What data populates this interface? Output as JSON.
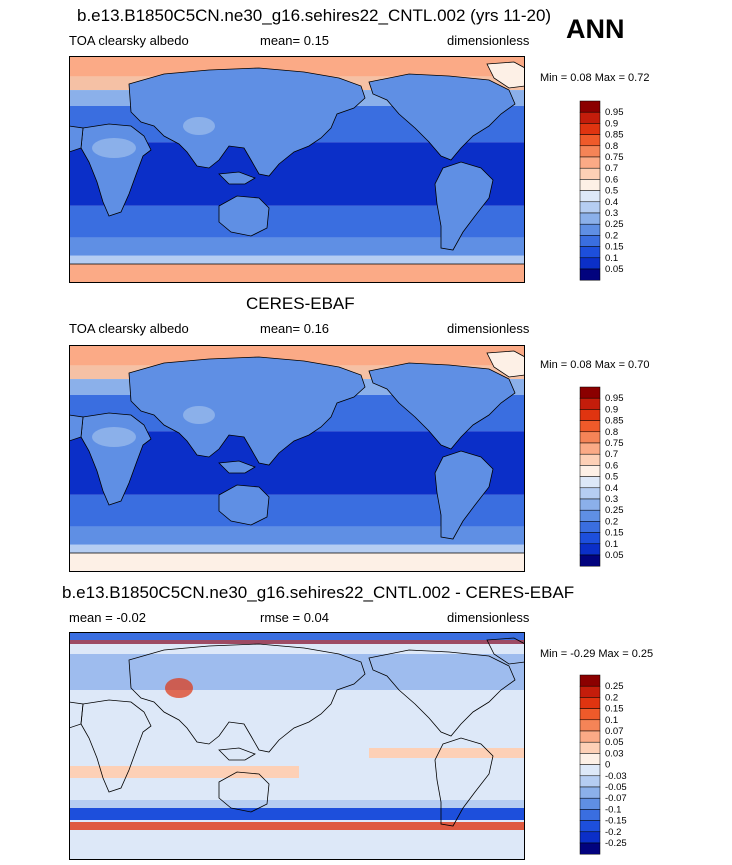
{
  "season": "ANN",
  "panels": [
    {
      "title": "b.e13.B1850C5CN.ne30_g16.sehires22_CNTL.002 (yrs 11-20)",
      "variable": "TOA clearsky albedo",
      "stat": "mean=   0.15",
      "units": "dimensionless",
      "minmax": "Min =   0.08 Max =   0.72",
      "colorbar_labels": [
        "0.95",
        "0.9",
        "0.85",
        "0.8",
        "0.75",
        "0.7",
        "0.6",
        "0.5",
        "0.4",
        "0.3",
        "0.25",
        "0.2",
        "0.15",
        "0.1",
        "0.05"
      ],
      "colorbar_colors": [
        "#8b0000",
        "#c41d0b",
        "#e03410",
        "#ef5a2a",
        "#f58457",
        "#fbaa86",
        "#fdd0b6",
        "#fdf0e6",
        "#dde8f8",
        "#b5cdf2",
        "#8bb0ea",
        "#5f8fe4",
        "#3a6ee0",
        "#1d4fdc",
        "#0b2fc8",
        "#02037e"
      ]
    },
    {
      "title": "CERES-EBAF",
      "variable": "TOA clearsky albedo",
      "stat": "mean=   0.16",
      "units": "dimensionless",
      "minmax": "Min =   0.08 Max =   0.70",
      "colorbar_labels": [
        "0.95",
        "0.9",
        "0.85",
        "0.8",
        "0.75",
        "0.7",
        "0.6",
        "0.5",
        "0.4",
        "0.3",
        "0.25",
        "0.2",
        "0.15",
        "0.1",
        "0.05"
      ],
      "colorbar_colors": [
        "#8b0000",
        "#c41d0b",
        "#e03410",
        "#ef5a2a",
        "#f58457",
        "#fbaa86",
        "#fdd0b6",
        "#fdf0e6",
        "#dde8f8",
        "#b5cdf2",
        "#8bb0ea",
        "#5f8fe4",
        "#3a6ee0",
        "#1d4fdc",
        "#0b2fc8",
        "#02037e"
      ]
    },
    {
      "title": "b.e13.B1850C5CN.ne30_g16.sehires22_CNTL.002 - CERES-EBAF",
      "variable": "mean =  -0.02",
      "stat": "rmse =   0.04",
      "units": "dimensionless",
      "minmax": "Min =  -0.29 Max =   0.25",
      "colorbar_labels": [
        "0.25",
        "0.2",
        "0.15",
        "0.1",
        "0.07",
        "0.05",
        "0.03",
        "0",
        "-0.03",
        "-0.05",
        "-0.07",
        "-0.1",
        "-0.15",
        "-0.2",
        "-0.25"
      ],
      "colorbar_colors": [
        "#8b0000",
        "#c41d0b",
        "#e03410",
        "#ef5a2a",
        "#f58457",
        "#fbaa86",
        "#fdd0b6",
        "#fdf0e6",
        "#dde8f8",
        "#b5cdf2",
        "#8bb0ea",
        "#5f8fe4",
        "#3a6ee0",
        "#1d4fdc",
        "#0b2fc8",
        "#02037e"
      ]
    }
  ],
  "colors": {
    "ocean_low": "#1d4fdc",
    "ocean_mid": "#3a6ee0",
    "tropics": "#0b2fc8",
    "land": "#5f8fe4",
    "desert": "#8bb0ea",
    "polar": "#fbaa86",
    "diff_bg": "#dde8f8",
    "diff_pos": "#fdd0b6",
    "diff_hot": "#e03410"
  }
}
